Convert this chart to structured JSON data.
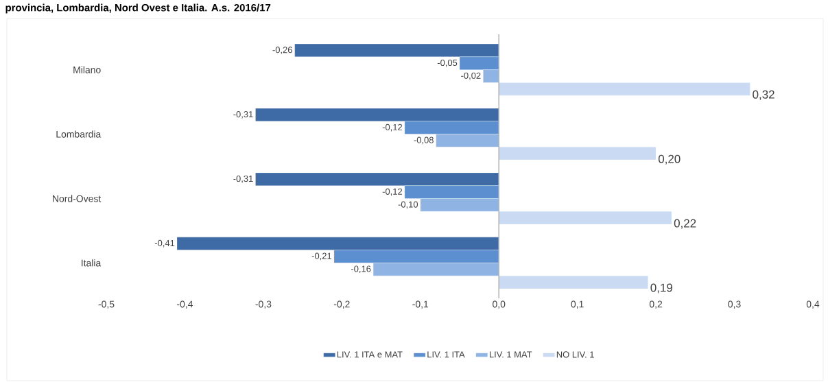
{
  "chart_data": {
    "type": "bar",
    "orientation": "horizontal",
    "title": "provincia, Lombardia, Nord Ovest e Italia. A.s. 2016/17",
    "categories": [
      "Milano",
      "Lombardia",
      "Nord-Ovest",
      "Italia"
    ],
    "series": [
      {
        "name": "LIV. 1 ITA e MAT",
        "color": "#3e6aa6",
        "values": [
          -0.26,
          -0.31,
          -0.31,
          -0.41
        ],
        "value_labels": [
          "-0,26",
          "-0,31",
          "-0,31",
          "-0,41"
        ]
      },
      {
        "name": "LIV. 1 ITA",
        "color": "#5b8fd0",
        "values": [
          -0.05,
          -0.12,
          -0.12,
          -0.21
        ],
        "value_labels": [
          "-0,05",
          "-0,12",
          "-0,12",
          "-0,21"
        ]
      },
      {
        "name": "LIV. 1 MAT",
        "color": "#8fb4e3",
        "values": [
          -0.02,
          -0.08,
          -0.1,
          -0.16
        ],
        "value_labels": [
          "-0,02",
          "-0,08",
          "-0,10",
          "-0,16"
        ]
      },
      {
        "name": "NO LIV. 1",
        "color": "#c9daf2",
        "values": [
          0.32,
          0.2,
          0.22,
          0.19
        ],
        "value_labels": [
          "0,32",
          "0,20",
          "0,22",
          "0,19"
        ]
      }
    ],
    "xlim": [
      -0.5,
      0.4
    ],
    "xticks": [
      {
        "value": -0.5,
        "label": "-0,5"
      },
      {
        "value": -0.4,
        "label": "-0,4"
      },
      {
        "value": -0.3,
        "label": "-0,3"
      },
      {
        "value": -0.2,
        "label": "-0,2"
      },
      {
        "value": -0.1,
        "label": "-0,1"
      },
      {
        "value": 0,
        "label": "0,0"
      },
      {
        "value": 0.1,
        "label": "0,1"
      },
      {
        "value": 0.2,
        "label": "0,2"
      },
      {
        "value": 0.3,
        "label": "0,3"
      },
      {
        "value": 0.4,
        "label": "0,4"
      }
    ],
    "legend": "bottom"
  }
}
